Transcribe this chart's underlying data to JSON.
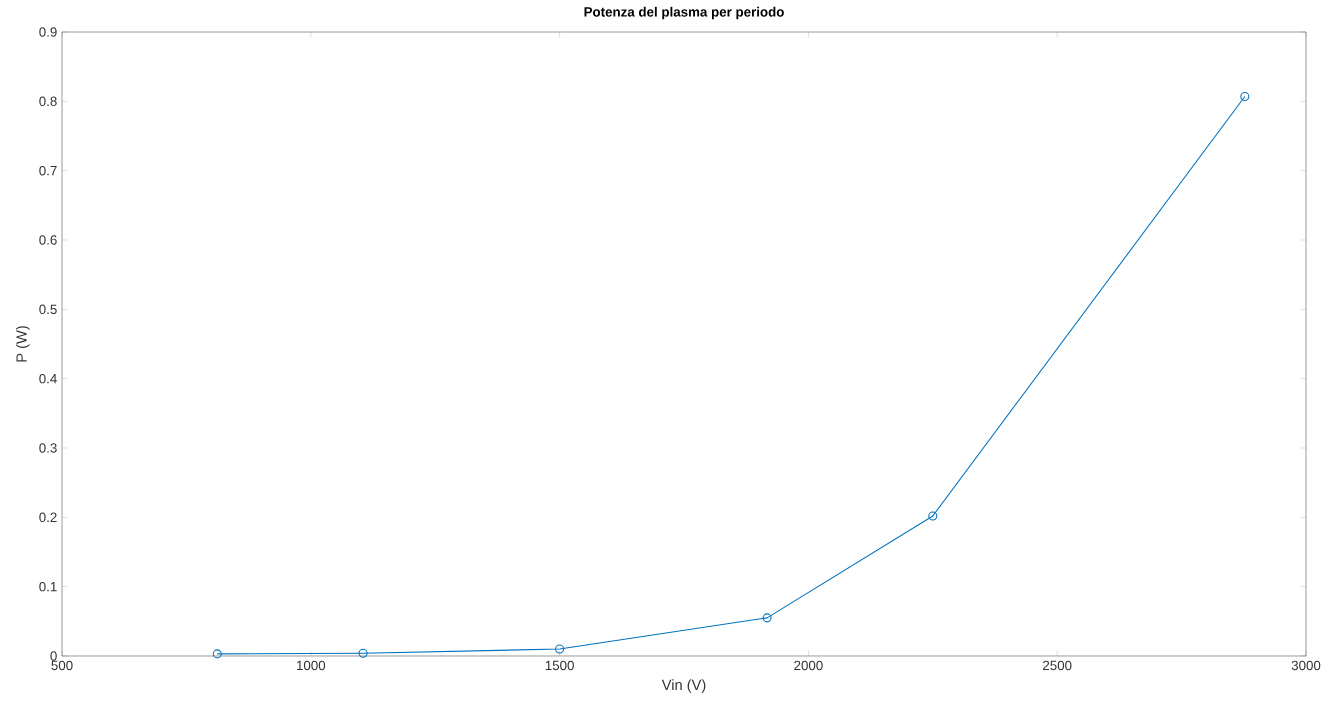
{
  "chart_data": {
    "type": "line",
    "title": "Potenza del plasma per periodo",
    "xlabel": "Vin (V)",
    "ylabel": "P (W)",
    "x": [
      812,
      1105,
      1500,
      1917,
      2250,
      2877
    ],
    "series": [
      {
        "color": "#0072bd",
        "values": [
          0.003,
          0.004,
          0.01,
          0.055,
          0.202,
          0.807
        ]
      }
    ],
    "xlim": [
      500,
      3000
    ],
    "xticks": [
      500,
      1000,
      1500,
      2000,
      2500,
      3000
    ],
    "ylim": [
      0,
      0.9
    ],
    "yticks": [
      0,
      0.1,
      0.2,
      0.3,
      0.4,
      0.5,
      0.6,
      0.7,
      0.8,
      0.9
    ],
    "marker": "circle",
    "line_style": "solid"
  }
}
